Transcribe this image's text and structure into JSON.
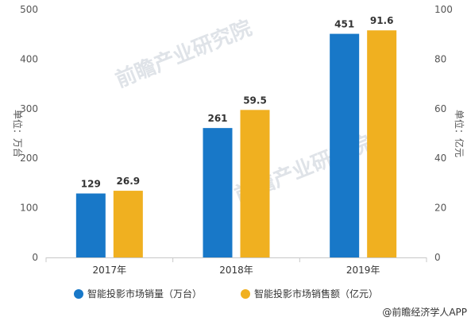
{
  "chart_data": {
    "type": "bar",
    "categories": [
      "2017年",
      "2018年",
      "2019年"
    ],
    "series": [
      {
        "name": "智能投影市场销量（万台）",
        "axis": "left",
        "color": "#1878c8",
        "values": [
          129,
          261,
          451
        ]
      },
      {
        "name": "智能投影市场销售额（亿元）",
        "axis": "right",
        "color": "#f0b020",
        "values": [
          26.9,
          59.5,
          91.6
        ]
      }
    ],
    "data_labels": [
      [
        "129",
        "261",
        "451"
      ],
      [
        "26.9",
        "59.5",
        "91.6"
      ]
    ],
    "ylabel_left": "单位：万台",
    "ylabel_right": "单位：亿元",
    "ylim_left": [
      0,
      500
    ],
    "ylim_right": [
      0,
      100
    ],
    "yticks_left": [
      "0",
      "100",
      "200",
      "300",
      "400",
      "500"
    ],
    "yticks_right": [
      "0",
      "20",
      "40",
      "60",
      "80",
      "100"
    ],
    "legend_position": "bottom",
    "grid": false
  },
  "source": "@前瞻经济学人APP",
  "watermark": "前瞻产业研究院"
}
